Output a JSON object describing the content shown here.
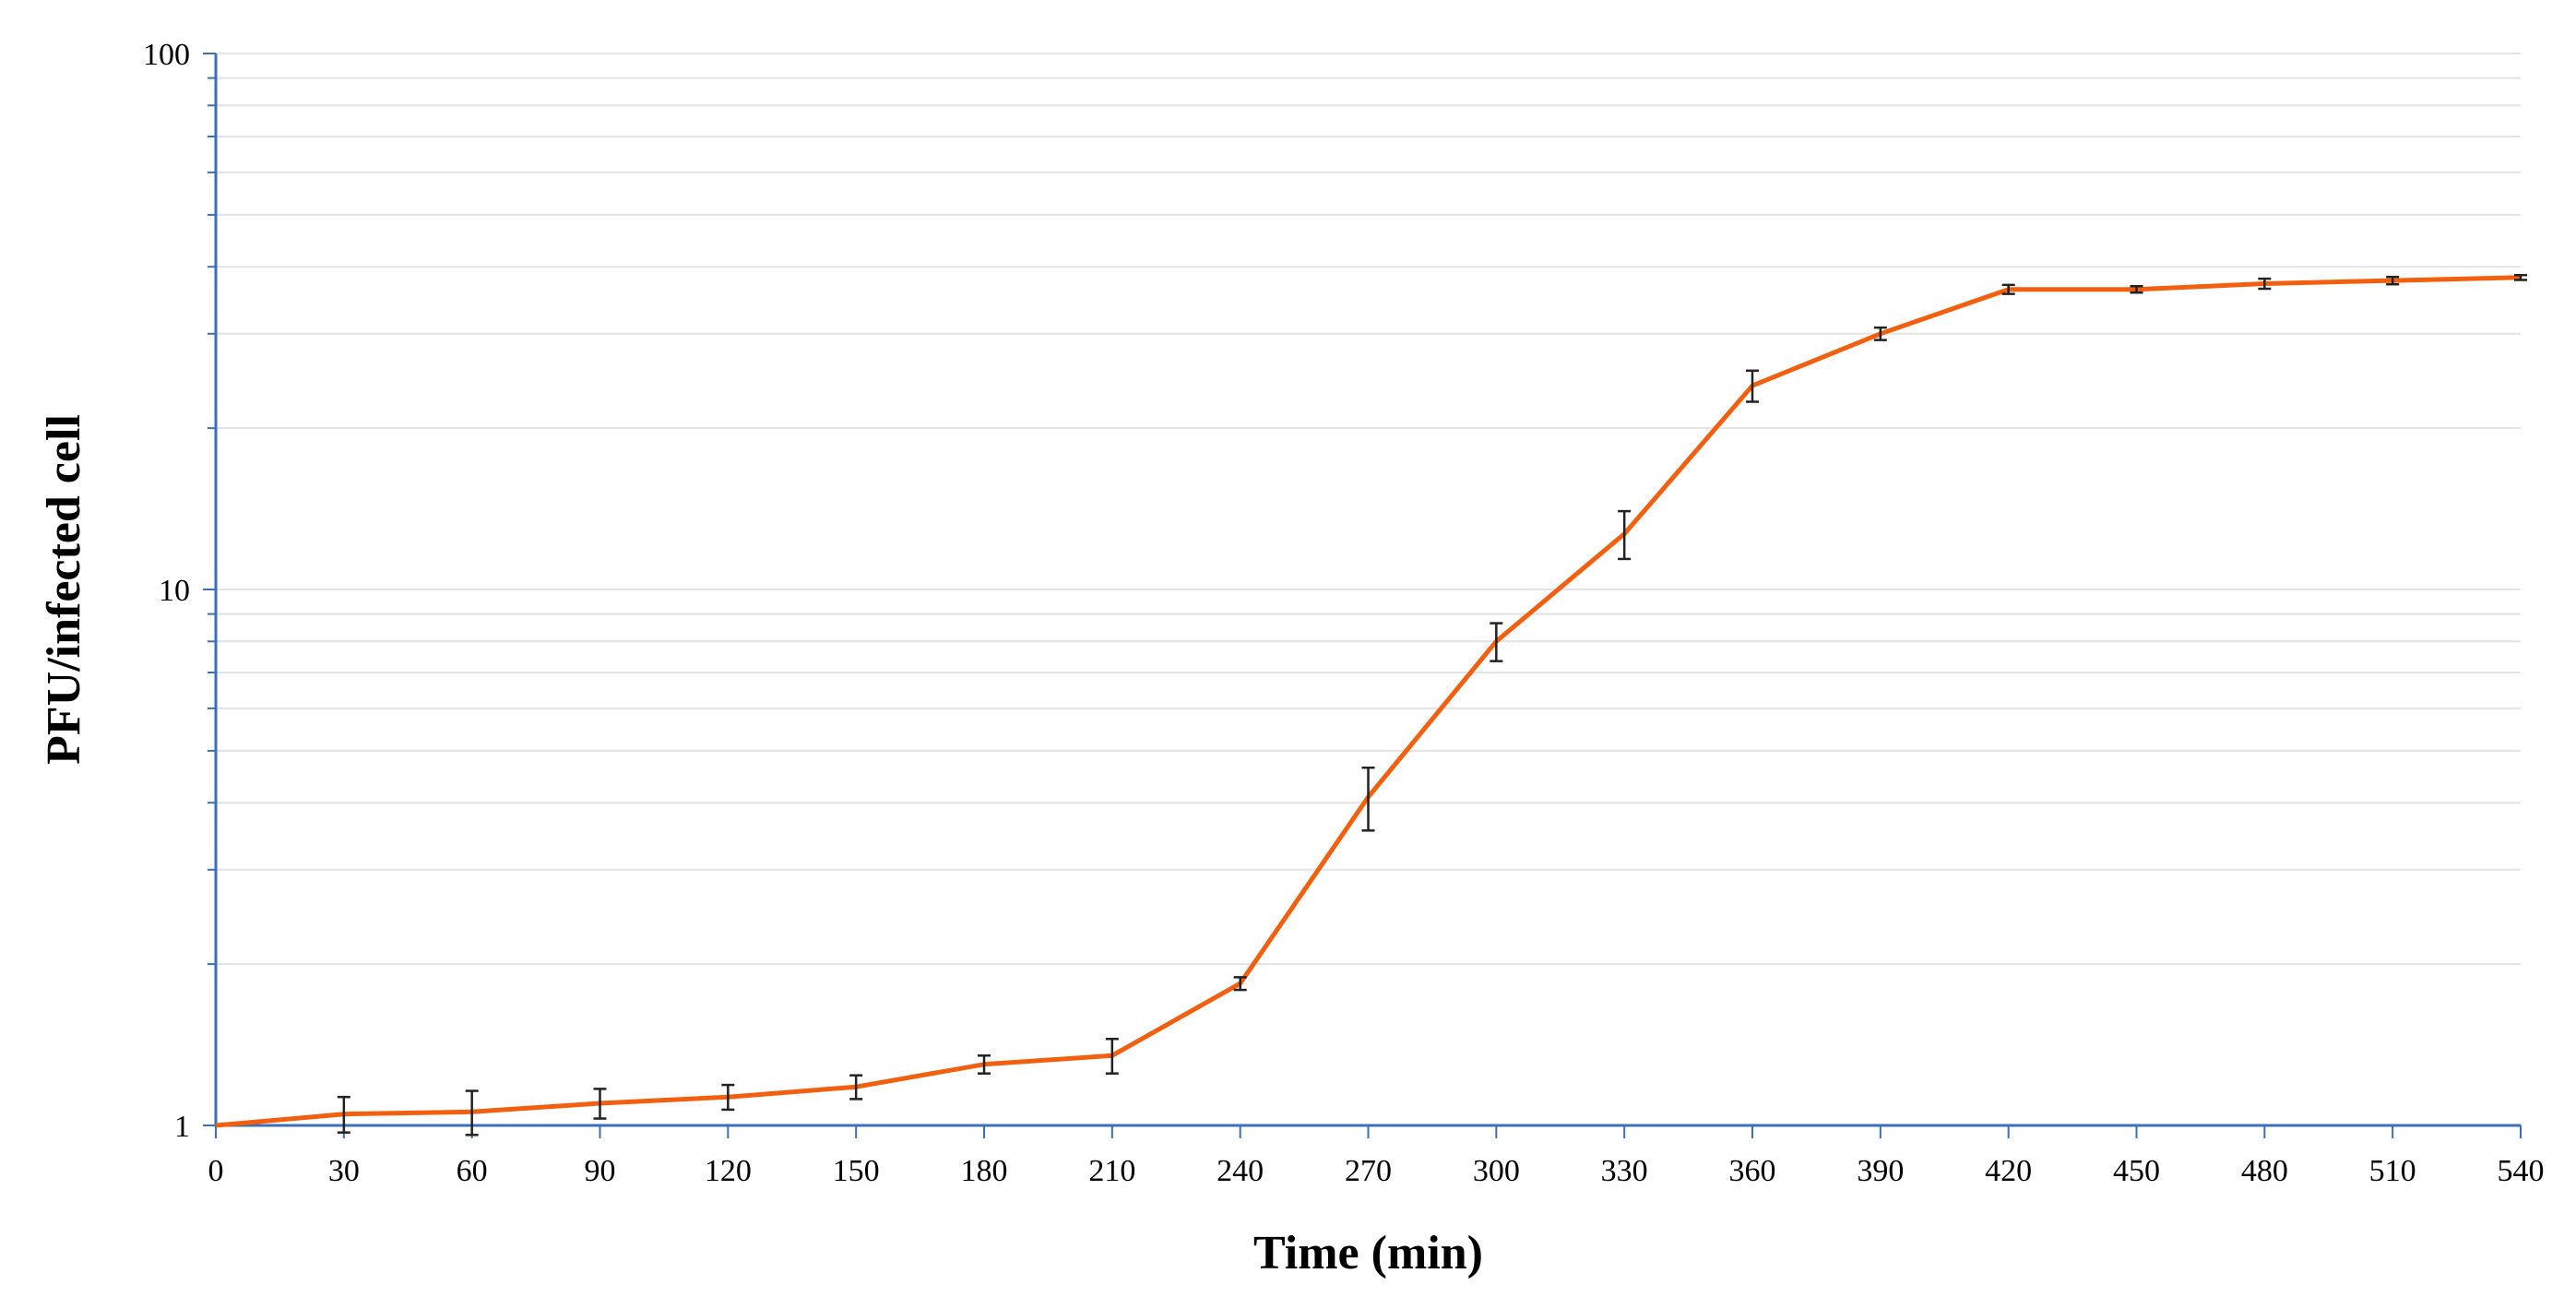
{
  "chart_data": {
    "type": "line",
    "title": "",
    "xlabel": "Time (min)",
    "ylabel": "PFU/infected cell",
    "x_ticks": [
      "0",
      "30",
      "60",
      "90",
      "120",
      "150",
      "180",
      "210",
      "240",
      "270",
      "300",
      "330",
      "360",
      "390",
      "420",
      "450",
      "480",
      "510",
      "540"
    ],
    "y_ticks": [
      "1",
      "10",
      "100"
    ],
    "xlim": [
      0,
      540
    ],
    "ylim": [
      1,
      100
    ],
    "y_scale": "log",
    "grid": "horizontal minor and major lines",
    "legend": "none",
    "series": [
      {
        "color": "#f2600f",
        "x": [
          0,
          30,
          60,
          90,
          120,
          150,
          180,
          210,
          240,
          270,
          300,
          330,
          360,
          390,
          420,
          450,
          480,
          510,
          540
        ],
        "y": [
          1.0,
          1.05,
          1.06,
          1.1,
          1.13,
          1.18,
          1.3,
          1.35,
          1.84,
          4.1,
          8.0,
          12.7,
          24.0,
          30.0,
          36.3,
          36.3,
          37.2,
          37.7,
          38.2
        ],
        "err": [
          0.0,
          0.08,
          0.1,
          0.07,
          0.06,
          0.06,
          0.05,
          0.1,
          0.05,
          0.55,
          0.65,
          1.3,
          1.6,
          0.8,
          0.7,
          0.5,
          0.8,
          0.6,
          0.4
        ]
      }
    ]
  }
}
